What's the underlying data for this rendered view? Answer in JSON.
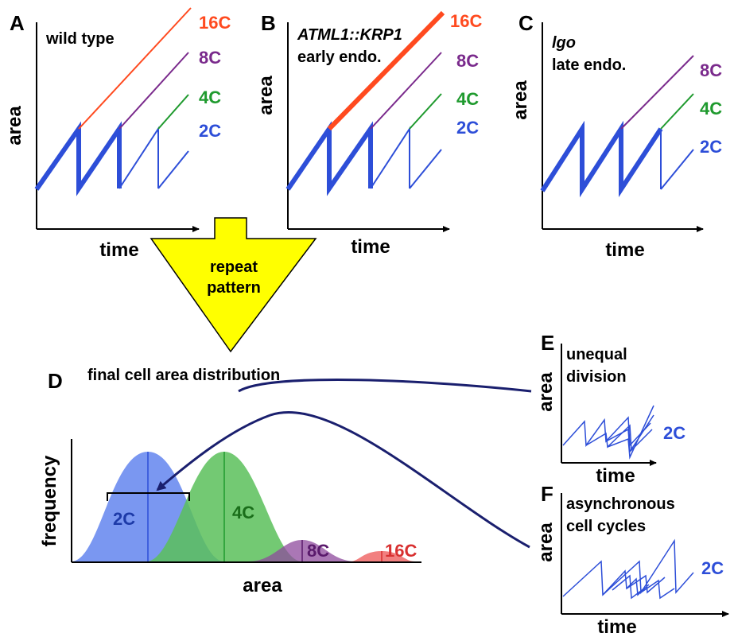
{
  "colors": {
    "c2": "#2d4ed8",
    "c4": "#1f9a2e",
    "c8": "#7a2a8c",
    "c16": "#ff4a1f",
    "arrow_fill": "#ffff00",
    "connector": "#1a1f6e",
    "dist_2c": "#6b8cf0",
    "dist_4c": "#6ec46e",
    "dist_8c": "#9a5aa5",
    "dist_16c": "#f06a6a"
  },
  "panels": {
    "A": {
      "letter": "A",
      "title": "wild type",
      "xlabel": "time",
      "ylabel": "area",
      "labels": {
        "c16": "16C",
        "c8": "8C",
        "c4": "4C",
        "c2": "2C"
      }
    },
    "B": {
      "letter": "B",
      "title_line1": "ATML1::KRP1",
      "title_line2": "early endo.",
      "xlabel": "time",
      "ylabel": "area",
      "labels": {
        "c16": "16C",
        "c8": "8C",
        "c4": "4C",
        "c2": "2C"
      }
    },
    "C": {
      "letter": "C",
      "title_line1": "lgo",
      "title_line2": "late endo.",
      "xlabel": "time",
      "ylabel": "area",
      "labels": {
        "c8": "8C",
        "c4": "4C",
        "c2": "2C"
      }
    },
    "D": {
      "letter": "D",
      "title": "final cell area distribution",
      "xlabel": "area",
      "ylabel": "frequency",
      "labels": {
        "c2": "2C",
        "c4": "4C",
        "c8": "8C",
        "c16": "16C"
      }
    },
    "E": {
      "letter": "E",
      "title_line1": "unequal",
      "title_line2": "division",
      "xlabel": "time",
      "ylabel": "area",
      "label_2c": "2C"
    },
    "F": {
      "letter": "F",
      "title_line1": "asynchronous",
      "title_line2": "cell cycles",
      "xlabel": "time",
      "ylabel": "area",
      "label_2c": "2C"
    }
  },
  "repeat_arrow": {
    "line1": "repeat",
    "line2": "pattern"
  }
}
